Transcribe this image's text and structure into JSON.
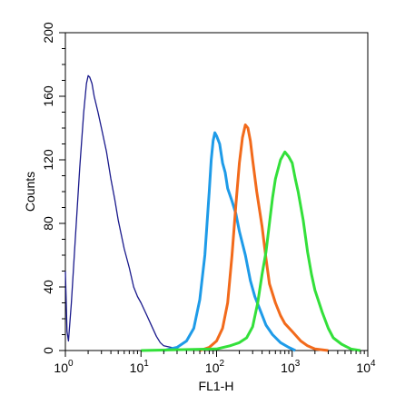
{
  "chart_data": {
    "type": "line",
    "title": "",
    "xlabel": "FL1-H",
    "ylabel": "Counts",
    "x_scale": "log",
    "xlim": [
      1,
      10000
    ],
    "ylim": [
      0,
      200
    ],
    "grid": false,
    "legend": "none",
    "x_ticks": [
      {
        "value": 1,
        "base": "10",
        "exp": "0"
      },
      {
        "value": 10,
        "base": "10",
        "exp": "1"
      },
      {
        "value": 100,
        "base": "10",
        "exp": "2"
      },
      {
        "value": 1000,
        "base": "10",
        "exp": "3"
      },
      {
        "value": 10000,
        "base": "10",
        "exp": "4"
      }
    ],
    "y_ticks": [
      "0",
      "40",
      "80",
      "120",
      "160",
      "200"
    ],
    "y_tick_values": [
      0,
      40,
      80,
      120,
      160,
      200
    ],
    "series": [
      {
        "color": "#1a1a8c",
        "points": [
          [
            1,
            50
          ],
          [
            1.05,
            12
          ],
          [
            1.1,
            6
          ],
          [
            1.2,
            30
          ],
          [
            1.35,
            70
          ],
          [
            1.55,
            115
          ],
          [
            1.75,
            150
          ],
          [
            1.9,
            168
          ],
          [
            2.0,
            173
          ],
          [
            2.1,
            172
          ],
          [
            2.25,
            168
          ],
          [
            2.4,
            160
          ],
          [
            2.7,
            150
          ],
          [
            3.0,
            140
          ],
          [
            3.5,
            125
          ],
          [
            4.0,
            108
          ],
          [
            4.5,
            95
          ],
          [
            5.0,
            82
          ],
          [
            6.0,
            64
          ],
          [
            7.0,
            52
          ],
          [
            8.0,
            40
          ],
          [
            9.0,
            34
          ],
          [
            10,
            30
          ],
          [
            12,
            22
          ],
          [
            14,
            15
          ],
          [
            16,
            9
          ],
          [
            18,
            5
          ],
          [
            20,
            3
          ],
          [
            25,
            2
          ],
          [
            30,
            1
          ],
          [
            40,
            0
          ]
        ]
      },
      {
        "color": "#1e9be8",
        "points": [
          [
            20,
            0
          ],
          [
            30,
            2
          ],
          [
            40,
            6
          ],
          [
            50,
            14
          ],
          [
            60,
            32
          ],
          [
            70,
            60
          ],
          [
            80,
            100
          ],
          [
            85,
            120
          ],
          [
            90,
            132
          ],
          [
            95,
            137
          ],
          [
            100,
            135
          ],
          [
            110,
            130
          ],
          [
            120,
            118
          ],
          [
            130,
            112
          ],
          [
            140,
            102
          ],
          [
            160,
            94
          ],
          [
            180,
            86
          ],
          [
            200,
            75
          ],
          [
            240,
            60
          ],
          [
            280,
            44
          ],
          [
            320,
            34
          ],
          [
            380,
            25
          ],
          [
            450,
            16
          ],
          [
            550,
            10
          ],
          [
            700,
            5
          ],
          [
            900,
            2
          ],
          [
            1100,
            0
          ]
        ]
      },
      {
        "color": "#f26a1b",
        "points": [
          [
            60,
            0
          ],
          [
            80,
            2
          ],
          [
            100,
            6
          ],
          [
            120,
            14
          ],
          [
            140,
            30
          ],
          [
            160,
            60
          ],
          [
            180,
            92
          ],
          [
            200,
            118
          ],
          [
            220,
            134
          ],
          [
            240,
            142
          ],
          [
            260,
            140
          ],
          [
            280,
            132
          ],
          [
            300,
            120
          ],
          [
            340,
            100
          ],
          [
            400,
            78
          ],
          [
            450,
            58
          ],
          [
            500,
            42
          ],
          [
            600,
            30
          ],
          [
            700,
            22
          ],
          [
            800,
            17
          ],
          [
            1000,
            12
          ],
          [
            1300,
            6
          ],
          [
            1600,
            3
          ],
          [
            2000,
            1
          ],
          [
            3000,
            0
          ]
        ]
      },
      {
        "color": "#33e03a",
        "points": [
          [
            10,
            0
          ],
          [
            100,
            1
          ],
          [
            150,
            3
          ],
          [
            200,
            5
          ],
          [
            250,
            8
          ],
          [
            300,
            15
          ],
          [
            350,
            30
          ],
          [
            400,
            48
          ],
          [
            450,
            62
          ],
          [
            500,
            80
          ],
          [
            550,
            96
          ],
          [
            600,
            108
          ],
          [
            700,
            120
          ],
          [
            800,
            125
          ],
          [
            900,
            122
          ],
          [
            1000,
            118
          ],
          [
            1100,
            108
          ],
          [
            1200,
            100
          ],
          [
            1400,
            82
          ],
          [
            1600,
            62
          ],
          [
            1800,
            48
          ],
          [
            2000,
            38
          ],
          [
            2500,
            24
          ],
          [
            3000,
            14
          ],
          [
            3500,
            8
          ],
          [
            4500,
            4
          ],
          [
            6000,
            1
          ],
          [
            8000,
            0
          ]
        ]
      }
    ]
  }
}
